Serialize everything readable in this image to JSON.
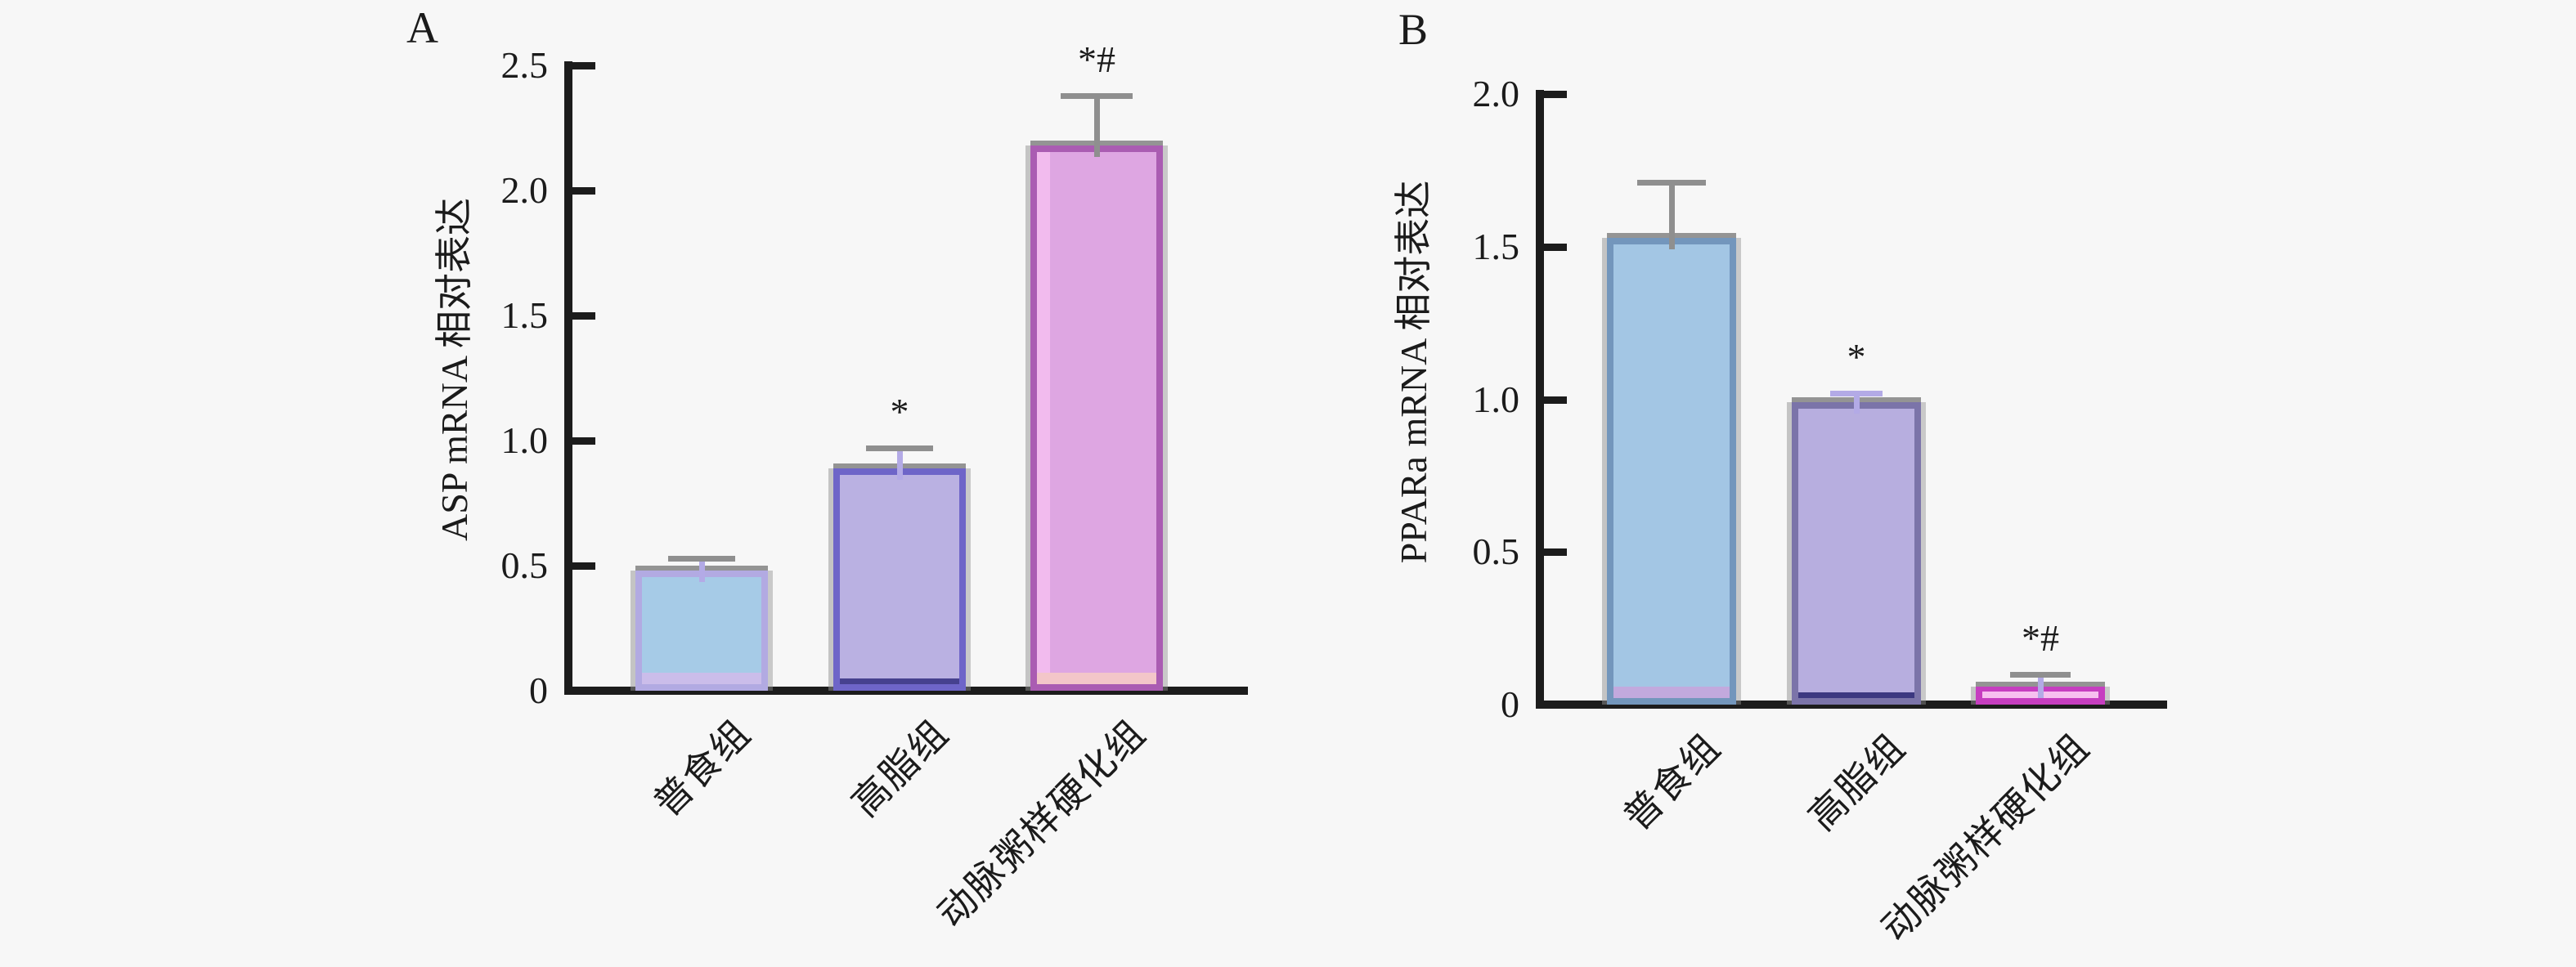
{
  "figure": {
    "background": "#f7f7f7",
    "axis_color": "#1c1c1c",
    "text_color": "#1b1b1b",
    "error_gray": "#8f8f8f",
    "error_lavender": "#b3aae6"
  },
  "chart_data": [
    {
      "type": "bar",
      "panel_label": "A",
      "ylabel": "ASP mRNA 相对表达",
      "xlabel": "",
      "categories": [
        "普食组",
        "高脂组",
        "动脉粥样硬化组"
      ],
      "values": [
        0.48,
        0.89,
        2.18
      ],
      "errors": [
        0.05,
        0.08,
        0.2
      ],
      "annotations": [
        "",
        "*",
        "*#"
      ],
      "ylim": [
        0,
        2.5
      ],
      "yticks": [
        {
          "v": 0,
          "label": "0"
        },
        {
          "v": 0.5,
          "label": "0.5"
        },
        {
          "v": 1.0,
          "label": "1.0"
        },
        {
          "v": 1.5,
          "label": "1.5"
        },
        {
          "v": 2.0,
          "label": "2.0"
        },
        {
          "v": 2.5,
          "label": "2.5"
        }
      ],
      "grid": false,
      "legend": "none",
      "bar_styles": [
        {
          "fill": "#a6cbe7",
          "border": "#b2aae2",
          "strip": "#cbbdea",
          "strip_h": 14,
          "stem": "#b3aae6",
          "cap": "#8f8f8f"
        },
        {
          "fill": "#bab1e2",
          "border": "#6e65c8",
          "strip": "#46418f",
          "strip_h": 7,
          "stem": "#b3aae6",
          "cap": "#8f8f8f"
        },
        {
          "fill": "#dea6e2",
          "border": "#aa5cb2",
          "strip": "#f3c6c9",
          "strip_h": 14,
          "stem": "#8f8f8f",
          "cap": "#8f8f8f",
          "left_highlight": "#f2bbee"
        }
      ]
    },
    {
      "type": "bar",
      "panel_label": "B",
      "ylabel": "PPARa mRNA 相对表达",
      "xlabel": "",
      "categories": [
        "普食组",
        "高脂组",
        "动脉粥样硬化组"
      ],
      "values": [
        1.53,
        0.99,
        0.06
      ],
      "errors": [
        0.18,
        0.03,
        0.04
      ],
      "annotations": [
        "",
        "*",
        "*#"
      ],
      "ylim": [
        0,
        2.0
      ],
      "yticks": [
        {
          "v": 0,
          "label": "0"
        },
        {
          "v": 0.5,
          "label": "0.5"
        },
        {
          "v": 1.0,
          "label": "1.0"
        },
        {
          "v": 1.5,
          "label": "1.5"
        },
        {
          "v": 2.0,
          "label": "2.0"
        }
      ],
      "grid": false,
      "legend": "none",
      "bar_styles": [
        {
          "fill": "#a3c6e4",
          "border": "#7396bc",
          "strip": "#c2a9dd",
          "strip_h": 14,
          "stem": "#8f8f8f",
          "cap": "#8f8f8f"
        },
        {
          "fill": "#b7aedf",
          "border": "#7b74a9",
          "strip": "#3c3880",
          "strip_h": 7,
          "stem": "#b3aae6",
          "cap": "#b3aae6"
        },
        {
          "fill": "#ef9be2",
          "border": "#c63ec0",
          "strip": "#f7c0ef",
          "strip_h": 8,
          "stem": "#b3aae6",
          "cap": "#8f8f8f"
        }
      ]
    }
  ]
}
